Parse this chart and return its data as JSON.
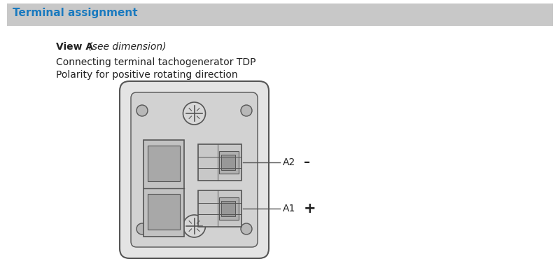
{
  "main_bg": "#ffffff",
  "header_bg": "#c8c8c8",
  "header_text": "Terminal assignment",
  "header_text_color": "#1a7abf",
  "view_label_bold": "View A",
  "view_label_italic": " (see dimension)",
  "line2": "Connecting terminal tachogenerator TDP",
  "line3": "Polarity for positive rotating direction",
  "text_color": "#222222",
  "connector_color": "#555555",
  "A2_label": "A2",
  "A1_label": "A1",
  "minus_symbol": "–",
  "plus_symbol": "+"
}
